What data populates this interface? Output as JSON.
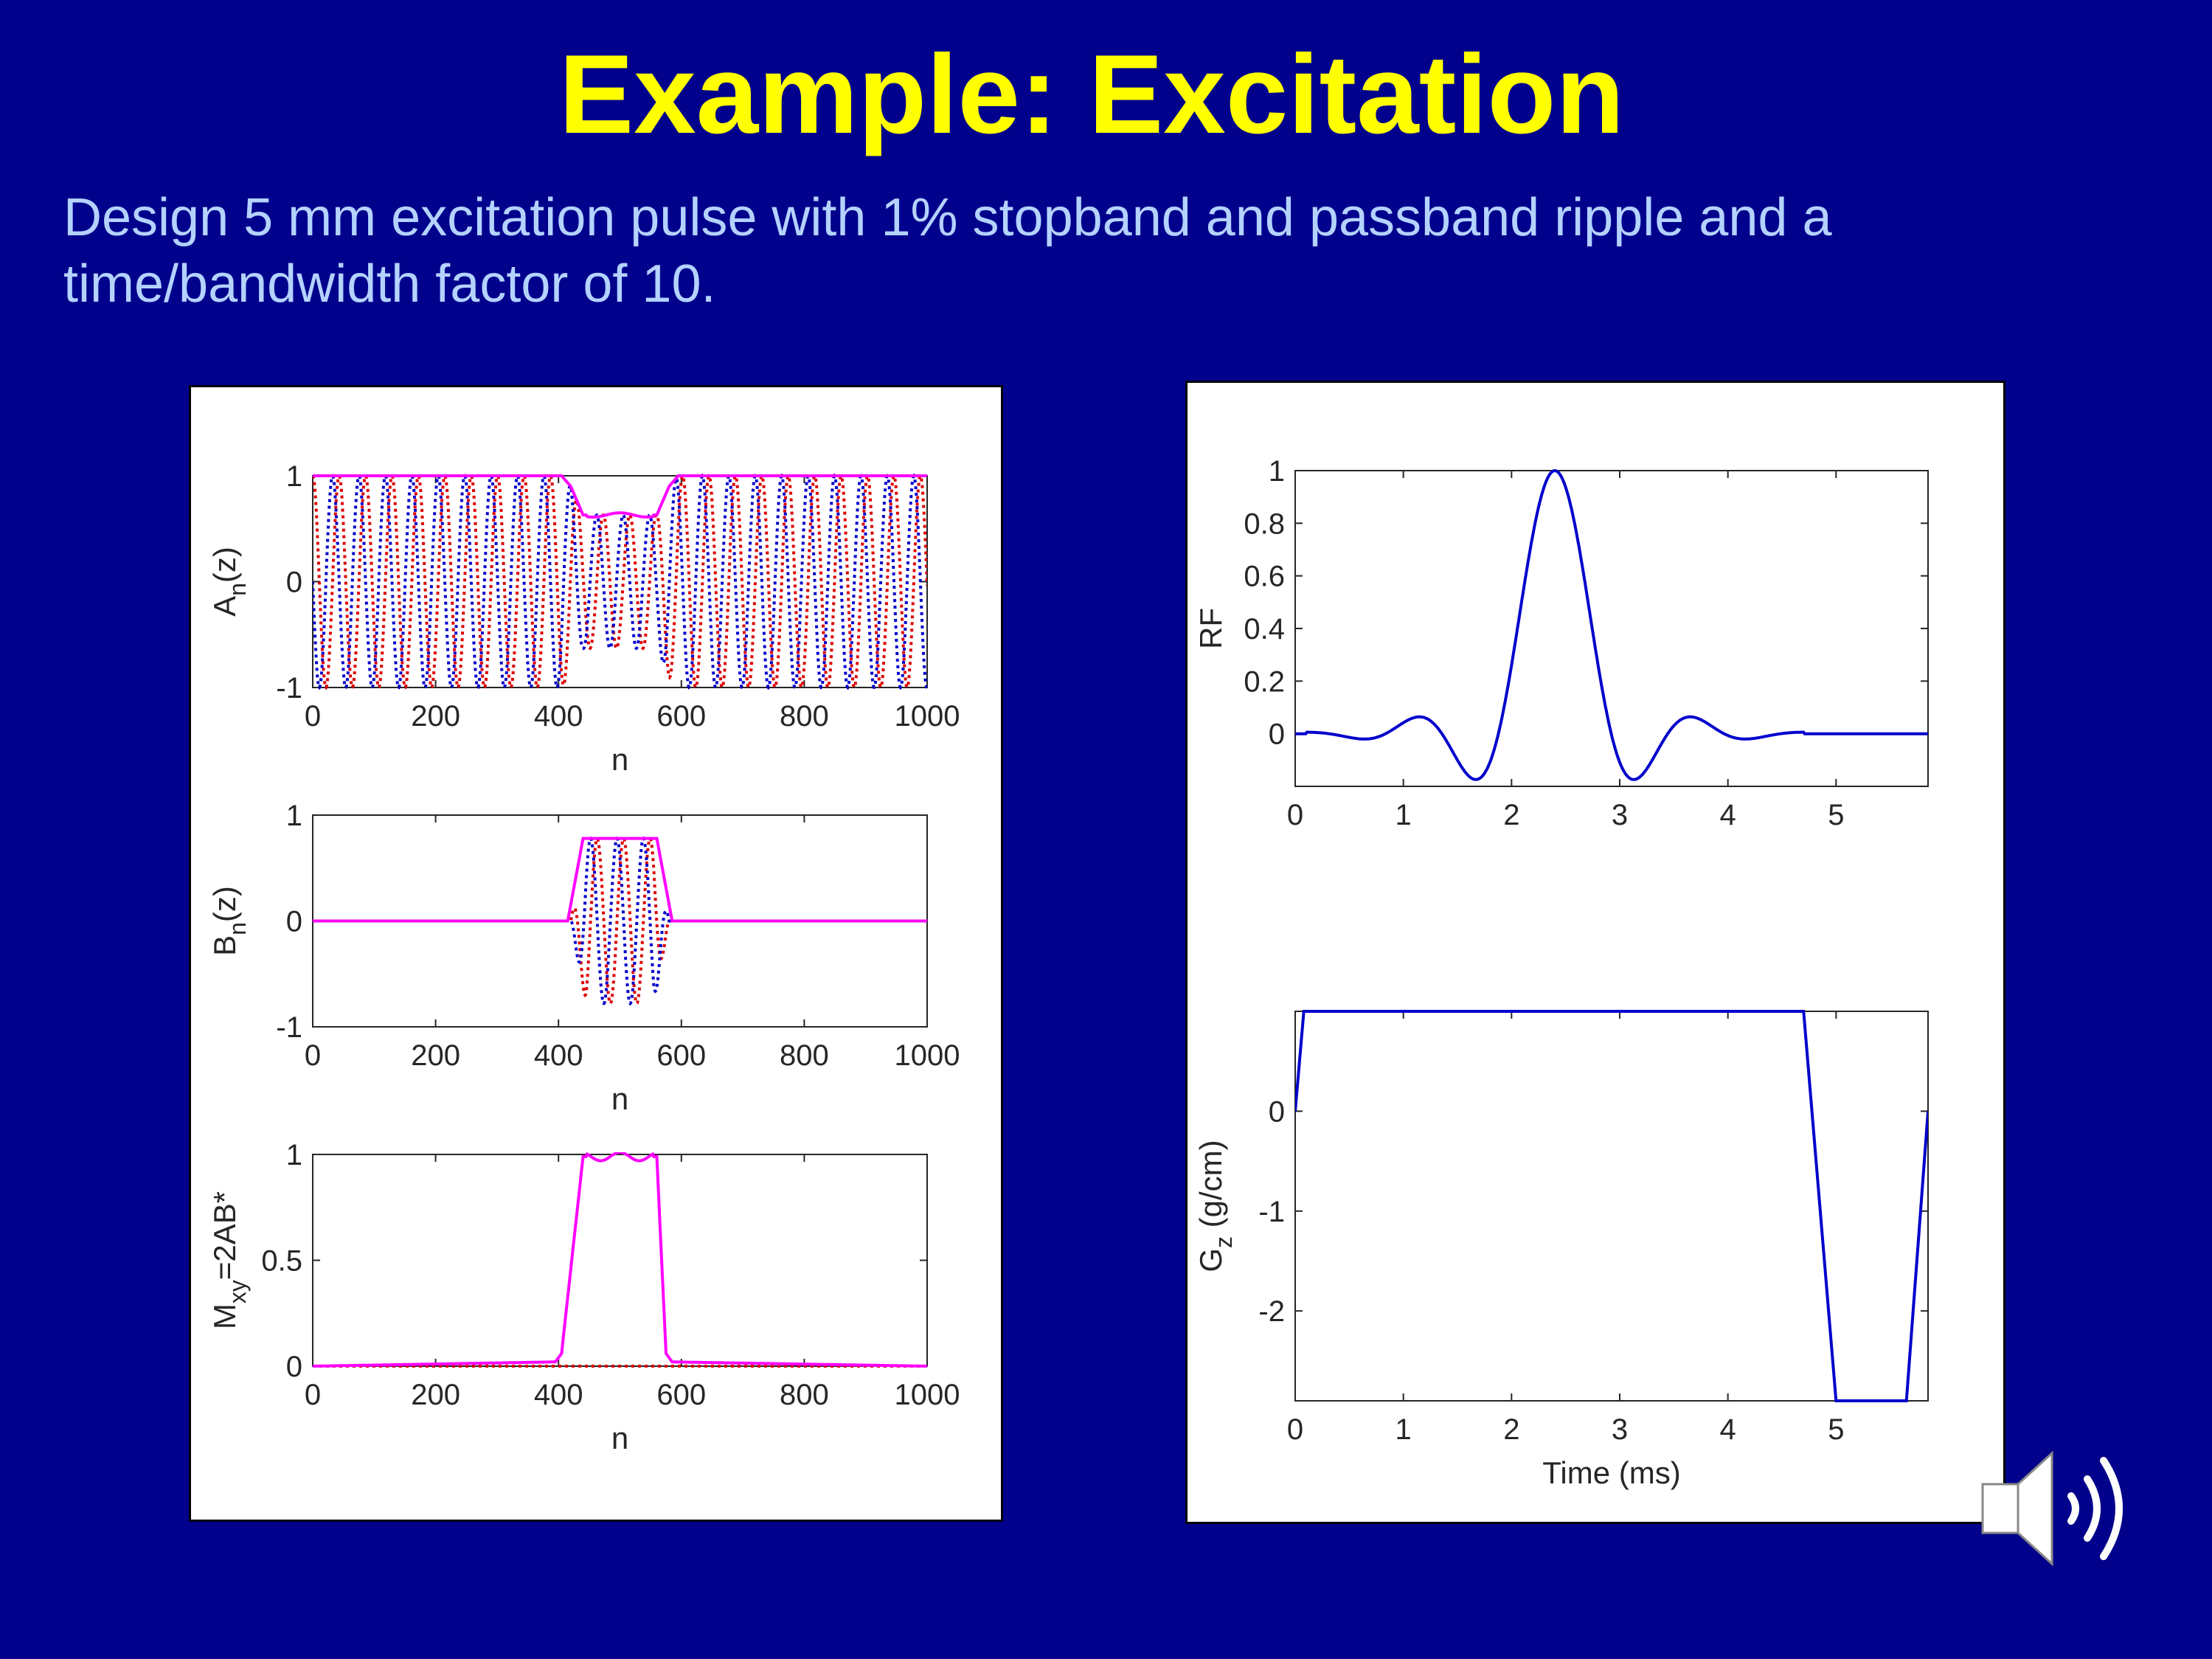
{
  "slide": {
    "title": "Example: Excitation",
    "subtitle": "Design 5 mm excitation pulse with 1% stopband and passband ripple and a time/bandwidth factor of 10."
  },
  "colors": {
    "background": "#01018c",
    "title": "#ffff00",
    "subtitle": "#b4d2ff",
    "magenta": "#ff00ff",
    "blue": "#0000cc",
    "red": "#dd0000"
  },
  "chart_data": [
    {
      "id": "an",
      "type": "line",
      "ylabel_main": "A",
      "ylabel_sub": "n",
      "ylabel_rest": "(z)",
      "xlabel": "n",
      "xlim": [
        0,
        1000
      ],
      "ylim": [
        -1,
        1
      ],
      "xticks": [
        "0",
        "200",
        "400",
        "600",
        "800",
        "1000"
      ],
      "yticks": [
        "-1",
        "0",
        "1"
      ],
      "series": [
        {
          "name": "real",
          "style": "dotted",
          "color": "#dd0000"
        },
        {
          "name": "imag",
          "style": "dotted",
          "color": "#0000cc"
        },
        {
          "name": "magnitude",
          "style": "solid",
          "color": "#ff00ff",
          "x": [
            0,
            405,
            420,
            440,
            560,
            580,
            595,
            1000
          ],
          "values": [
            1,
            1,
            0.9,
            0.63,
            0.63,
            0.9,
            1,
            1
          ]
        }
      ]
    },
    {
      "id": "bn",
      "type": "line",
      "ylabel_main": "B",
      "ylabel_sub": "n",
      "ylabel_rest": "(z)",
      "xlabel": "n",
      "xlim": [
        0,
        1000
      ],
      "ylim": [
        -1,
        1
      ],
      "xticks": [
        "0",
        "200",
        "400",
        "600",
        "800",
        "1000"
      ],
      "yticks": [
        "-1",
        "0",
        "1"
      ],
      "series": [
        {
          "name": "real",
          "style": "dotted",
          "color": "#dd0000"
        },
        {
          "name": "imag",
          "style": "dotted",
          "color": "#0000cc"
        },
        {
          "name": "magnitude",
          "style": "solid",
          "color": "#ff00ff",
          "x": [
            0,
            415,
            440,
            560,
            585,
            1000
          ],
          "values": [
            0,
            0,
            0.78,
            0.78,
            0,
            0
          ]
        }
      ]
    },
    {
      "id": "mxy",
      "type": "line",
      "ylabel_main": "M",
      "ylabel_sub": "xy",
      "ylabel_rest": "=2AB*",
      "xlabel": "n",
      "xlim": [
        0,
        1000
      ],
      "ylim": [
        0,
        1
      ],
      "xticks": [
        "0",
        "200",
        "400",
        "600",
        "800",
        "1000"
      ],
      "yticks": [
        "0",
        "0.5",
        "1"
      ],
      "series": [
        {
          "name": "imag",
          "style": "dotted",
          "color": "#dd0000"
        },
        {
          "name": "magnitude",
          "style": "solid",
          "color": "#ff00ff",
          "x": [
            0,
            395,
            405,
            440,
            560,
            575,
            585,
            1000
          ],
          "values": [
            0,
            0.02,
            0.06,
            0.99,
            0.99,
            0.06,
            0.02,
            0
          ]
        }
      ]
    },
    {
      "id": "rf",
      "type": "line",
      "ylabel": "RF",
      "xlabel": "",
      "xlim": [
        0,
        5.85
      ],
      "ylim": [
        -0.2,
        1
      ],
      "xticks": [
        "0",
        "1",
        "2",
        "3",
        "4",
        "5"
      ],
      "yticks": [
        "0",
        "0.2",
        "0.4",
        "0.6",
        "0.8",
        "1"
      ],
      "series": [
        {
          "name": "RF pulse",
          "color": "#0000cc",
          "style": "solid",
          "center_ms": 2.4,
          "duration_ms": 4.8
        }
      ]
    },
    {
      "id": "gz",
      "type": "line",
      "ylabel_main": "G",
      "ylabel_sub": "z",
      "ylabel_rest": " (g/cm)",
      "xlabel": "Time (ms)",
      "xlim": [
        0,
        5.85
      ],
      "ylim": [
        -2.9,
        1.0
      ],
      "xticks": [
        "0",
        "1",
        "2",
        "3",
        "4",
        "5"
      ],
      "yticks": [
        "0",
        "-1",
        "-2"
      ],
      "series": [
        {
          "name": "gradient",
          "color": "#0000cc",
          "style": "solid",
          "x": [
            0,
            0.08,
            4.7,
            5.0,
            5.65,
            5.85
          ],
          "values": [
            0,
            1.0,
            1.0,
            -2.9,
            -2.9,
            0
          ]
        }
      ]
    }
  ],
  "icons": {
    "speaker": "speaker-icon"
  }
}
